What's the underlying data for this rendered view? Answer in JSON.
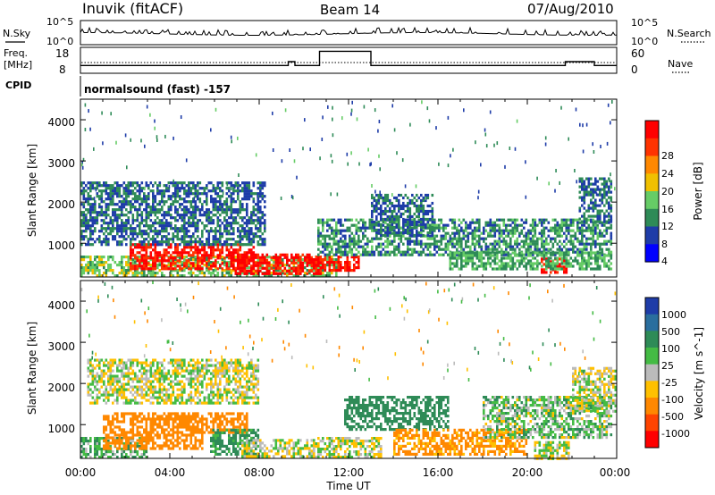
{
  "header": {
    "station": "Inuvik (fitACF)",
    "beam": "Beam 14",
    "date": "07/Aug/2010"
  },
  "status_panel": {
    "nsky_label": "N.Sky",
    "nsearch_label": "N.Search",
    "left_ticks": [
      "10^5",
      "10^0"
    ],
    "right_ticks": [
      "10^5",
      "10^0"
    ]
  },
  "freq_panel": {
    "freq_label": "Freq.",
    "freq_unit": "[MHz]",
    "nave_label": "Nave",
    "left_ticks": [
      "18",
      "8"
    ],
    "right_ticks": [
      "60",
      "0"
    ]
  },
  "cpid": {
    "label": "CPID",
    "value": "normalsound (fast) -157"
  },
  "power_panel": {
    "ylabel": "Slant Range [km]",
    "yticks": [
      "4000",
      "3000",
      "2000",
      "1000"
    ],
    "colorbar_label": "Power [dB]",
    "colorbar_ticks": [
      "28",
      "24",
      "20",
      "16",
      "12",
      "8",
      "4"
    ],
    "colors": [
      "#0000ff",
      "#1e3ca8",
      "#2e8b57",
      "#66cc66",
      "#f0c000",
      "#ff8800",
      "#ff3300",
      "#ff0000"
    ]
  },
  "velocity_panel": {
    "ylabel": "Slant Range [km]",
    "yticks": [
      "4000",
      "3000",
      "2000",
      "1000"
    ],
    "colorbar_label": "Velocity [m s^-1]",
    "colorbar_ticks": [
      "1000",
      "500",
      "100",
      "25",
      "-25",
      "-100",
      "-500",
      "-1000"
    ],
    "colors": [
      "#1e3ca8",
      "#2a6e9e",
      "#2e8b57",
      "#44bb44",
      "#bbbbbb",
      "#ffc000",
      "#ff8800",
      "#ff4400",
      "#ff0000"
    ]
  },
  "xaxis": {
    "label": "Time UT",
    "ticks": [
      "00:00",
      "04:00",
      "08:00",
      "12:00",
      "16:00",
      "20:00",
      "00:00"
    ]
  },
  "chart_data": [
    {
      "type": "line",
      "title": "Freq. / Nave",
      "x_unit": "hours UT",
      "series": [
        {
          "name": "Freq. [MHz]",
          "x": [
            0,
            9.3,
            9.3,
            9.6,
            9.6,
            10.7,
            10.7,
            13.0,
            13.0,
            21.7,
            21.7,
            23.0,
            23.0,
            24
          ],
          "values": [
            11,
            11,
            12.5,
            12.5,
            11,
            11,
            16.5,
            16.5,
            11,
            11,
            12.5,
            12.5,
            11,
            11
          ]
        }
      ],
      "ylim": [
        8,
        18
      ]
    },
    {
      "type": "heatmap",
      "title": "Power [dB]",
      "xlabel": "Time UT",
      "ylabel": "Slant Range [km]",
      "xlim": [
        0,
        24
      ],
      "ylim": [
        180,
        4500
      ],
      "colorbar": [
        4,
        8,
        12,
        16,
        20,
        24,
        28
      ],
      "regions": [
        {
          "t": [
            0.0,
            11.5
          ],
          "r": [
            180,
            700
          ],
          "value": 14
        },
        {
          "t": [
            2.2,
            7.8
          ],
          "r": [
            400,
            1000
          ],
          "value": 28
        },
        {
          "t": [
            6.8,
            10.8
          ],
          "r": [
            250,
            750
          ],
          "value": 30
        },
        {
          "t": [
            10.3,
            12.5
          ],
          "r": [
            350,
            700
          ],
          "value": 28
        },
        {
          "t": [
            20.6,
            21.8
          ],
          "r": [
            260,
            650
          ],
          "value": 28
        },
        {
          "t": [
            0.0,
            8.3
          ],
          "r": [
            1000,
            2500
          ],
          "value": 8
        },
        {
          "t": [
            10.6,
            23.8
          ],
          "r": [
            700,
            1600
          ],
          "value": 10
        },
        {
          "t": [
            16.5,
            23.8
          ],
          "r": [
            350,
            800
          ],
          "value": 12
        },
        {
          "t": [
            13.0,
            15.8
          ],
          "r": [
            1200,
            2200
          ],
          "value": 8
        },
        {
          "t": [
            22.3,
            23.8
          ],
          "r": [
            1500,
            2600
          ],
          "value": 8
        }
      ]
    },
    {
      "type": "heatmap",
      "title": "Velocity [m s^-1]",
      "xlabel": "Time UT",
      "ylabel": "Slant Range [km]",
      "xlim": [
        0,
        24
      ],
      "ylim": [
        180,
        4500
      ],
      "colorbar": [
        -1000,
        -500,
        -100,
        -25,
        25,
        100,
        500,
        1000
      ],
      "regions": [
        {
          "t": [
            0.0,
            3.0
          ],
          "r": [
            200,
            700
          ],
          "value": 100
        },
        {
          "t": [
            1.0,
            5.5
          ],
          "r": [
            400,
            1300
          ],
          "value": -300
        },
        {
          "t": [
            3.5,
            7.5
          ],
          "r": [
            800,
            1300
          ],
          "value": -200
        },
        {
          "t": [
            5.8,
            8.0
          ],
          "r": [
            300,
            900
          ],
          "value": 150
        },
        {
          "t": [
            7.2,
            10.5
          ],
          "r": [
            200,
            650
          ],
          "value": 0
        },
        {
          "t": [
            10.5,
            13.5
          ],
          "r": [
            200,
            700
          ],
          "value": 0
        },
        {
          "t": [
            0.3,
            8.0
          ],
          "r": [
            1500,
            2600
          ],
          "value": 0
        },
        {
          "t": [
            11.8,
            16.5
          ],
          "r": [
            900,
            1700
          ],
          "value": 250
        },
        {
          "t": [
            14.0,
            20.0
          ],
          "r": [
            250,
            900
          ],
          "value": -150
        },
        {
          "t": [
            20.3,
            21.9
          ],
          "r": [
            200,
            600
          ],
          "value": 0
        },
        {
          "t": [
            18.0,
            23.8
          ],
          "r": [
            700,
            1700
          ],
          "value": 50
        },
        {
          "t": [
            22.0,
            24.0
          ],
          "r": [
            1300,
            2400
          ],
          "value": 0
        }
      ]
    }
  ]
}
